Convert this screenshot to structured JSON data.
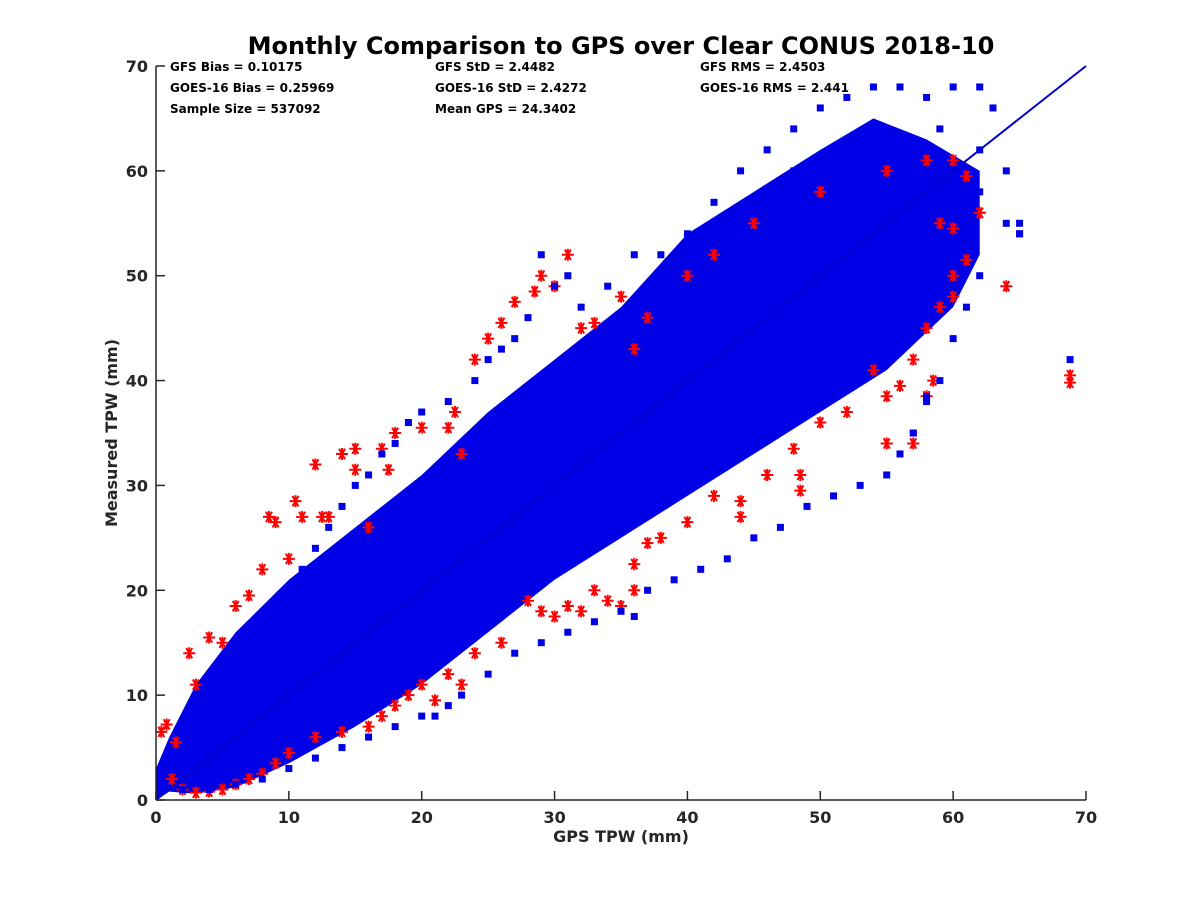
{
  "chart_data": {
    "type": "scatter",
    "title": "Monthly Comparison to GPS over Clear CONUS 2018-10",
    "xlabel": "GPS TPW (mm)",
    "ylabel": "Measured TPW (mm)",
    "xlim": [
      0,
      70
    ],
    "ylim": [
      0,
      70
    ],
    "xticks": [
      0,
      10,
      20,
      30,
      40,
      50,
      60,
      70
    ],
    "yticks": [
      0,
      10,
      20,
      30,
      40,
      50,
      60,
      70
    ],
    "reference_line": {
      "name": "1:1 line",
      "x": [
        0,
        70
      ],
      "y": [
        0,
        70
      ],
      "color": "#0000cc"
    },
    "stats": {
      "gfs_bias": "GFS Bias = 0.10175",
      "goes_bias": "GOES-16 Bias = 0.25969",
      "sample_size": "Sample Size = 537092",
      "gfs_std": "GFS StD = 2.4482",
      "goes_std": "GOES-16 StD = 2.4272",
      "mean_gps": "Mean GPS = 24.3402",
      "gfs_rms": "GFS RMS = 2.4503",
      "goes_rms": "GOES-16 RMS = 2.441"
    },
    "series": [
      {
        "name": "GOES-16",
        "marker": "asterisk",
        "color": "#ff0000",
        "points": [
          [
            0.4,
            6.5
          ],
          [
            0.8,
            7.2
          ],
          [
            1.5,
            5.5
          ],
          [
            2.5,
            14
          ],
          [
            3,
            11
          ],
          [
            4,
            15.5
          ],
          [
            5,
            15
          ],
          [
            6,
            18.5
          ],
          [
            7,
            19.5
          ],
          [
            8,
            22
          ],
          [
            8.5,
            27
          ],
          [
            9,
            26.5
          ],
          [
            10,
            23
          ],
          [
            10.5,
            28.5
          ],
          [
            11,
            27
          ],
          [
            12,
            32
          ],
          [
            12.5,
            27
          ],
          [
            13,
            27
          ],
          [
            14,
            33
          ],
          [
            15,
            33.5
          ],
          [
            15,
            31.5
          ],
          [
            16,
            26
          ],
          [
            17,
            33.5
          ],
          [
            17.5,
            31.5
          ],
          [
            18,
            35
          ],
          [
            20,
            35.5
          ],
          [
            22,
            35.5
          ],
          [
            22.5,
            37
          ],
          [
            23,
            33
          ],
          [
            24,
            42
          ],
          [
            25,
            44
          ],
          [
            26,
            45.5
          ],
          [
            27,
            47.5
          ],
          [
            28.5,
            48.5
          ],
          [
            29,
            50
          ],
          [
            30,
            49
          ],
          [
            31,
            52
          ],
          [
            32,
            45
          ],
          [
            33,
            45.5
          ],
          [
            35,
            48
          ],
          [
            36,
            43
          ],
          [
            37,
            46
          ],
          [
            40,
            50
          ],
          [
            42,
            52
          ],
          [
            45,
            55
          ],
          [
            50,
            58
          ],
          [
            55,
            60
          ],
          [
            58,
            61
          ],
          [
            60,
            61
          ],
          [
            61,
            59.5
          ],
          [
            62,
            56
          ],
          [
            60,
            54.5
          ],
          [
            60,
            48
          ],
          [
            59,
            47
          ],
          [
            58,
            45
          ],
          [
            57,
            42
          ],
          [
            56,
            39.5
          ],
          [
            55,
            38.5
          ],
          [
            54,
            41
          ],
          [
            52,
            37
          ],
          [
            50,
            36
          ],
          [
            48,
            33.5
          ],
          [
            48.5,
            31
          ],
          [
            48.5,
            29.5
          ],
          [
            46,
            31
          ],
          [
            44,
            28.5
          ],
          [
            44,
            27
          ],
          [
            42,
            29
          ],
          [
            40,
            26.5
          ],
          [
            38,
            25
          ],
          [
            37,
            24.5
          ],
          [
            36,
            22.5
          ],
          [
            36,
            20
          ],
          [
            35,
            18.5
          ],
          [
            34,
            19
          ],
          [
            33,
            20
          ],
          [
            32,
            18
          ],
          [
            31,
            18.5
          ],
          [
            30,
            17.5
          ],
          [
            29,
            18
          ],
          [
            28,
            19
          ],
          [
            26,
            15
          ],
          [
            24,
            14
          ],
          [
            23,
            11
          ],
          [
            22,
            12
          ],
          [
            21,
            9.5
          ],
          [
            20,
            11
          ],
          [
            19,
            10
          ],
          [
            18,
            9
          ],
          [
            17,
            8
          ],
          [
            16,
            7
          ],
          [
            14,
            6.5
          ],
          [
            12,
            6
          ],
          [
            10,
            4.5
          ],
          [
            9,
            3.5
          ],
          [
            8,
            2.5
          ],
          [
            7,
            2
          ],
          [
            6,
            1.5
          ],
          [
            5,
            1
          ],
          [
            4,
            0.8
          ],
          [
            3,
            0.7
          ],
          [
            2,
            1
          ],
          [
            1.2,
            2
          ],
          [
            58.5,
            40
          ],
          [
            58,
            38.5
          ],
          [
            55,
            34
          ],
          [
            57,
            34
          ],
          [
            64,
            49
          ],
          [
            62,
            56
          ],
          [
            68.8,
            40.5
          ],
          [
            68.8,
            39.8
          ],
          [
            59,
            55
          ],
          [
            61,
            51.5
          ],
          [
            60,
            50
          ]
        ]
      },
      {
        "name": "GFS",
        "marker": "square",
        "color": "#0000e6",
        "points": [
          [
            1,
            3
          ],
          [
            2,
            5
          ],
          [
            3,
            8
          ],
          [
            4,
            9
          ],
          [
            5,
            12
          ],
          [
            6,
            14
          ],
          [
            7,
            15
          ],
          [
            8,
            17
          ],
          [
            9,
            19
          ],
          [
            10,
            20
          ],
          [
            11,
            22
          ],
          [
            12,
            24
          ],
          [
            13,
            26
          ],
          [
            14,
            28
          ],
          [
            15,
            30
          ],
          [
            16,
            31
          ],
          [
            17,
            33
          ],
          [
            18,
            34
          ],
          [
            19,
            36
          ],
          [
            20,
            37
          ],
          [
            22,
            38
          ],
          [
            24,
            40
          ],
          [
            25,
            42
          ],
          [
            26,
            43
          ],
          [
            27,
            44
          ],
          [
            28,
            46
          ],
          [
            29,
            52
          ],
          [
            30,
            49
          ],
          [
            31,
            50
          ],
          [
            32,
            47
          ],
          [
            34,
            49
          ],
          [
            36,
            52
          ],
          [
            38,
            52
          ],
          [
            40,
            54
          ],
          [
            42,
            57
          ],
          [
            44,
            60
          ],
          [
            46,
            62
          ],
          [
            48,
            64
          ],
          [
            50,
            66
          ],
          [
            52,
            67
          ],
          [
            54,
            68
          ],
          [
            56,
            68
          ],
          [
            58,
            67
          ],
          [
            60,
            68
          ],
          [
            62,
            68
          ],
          [
            63,
            66
          ],
          [
            64,
            60
          ],
          [
            65,
            55
          ],
          [
            65,
            54
          ],
          [
            62,
            50
          ],
          [
            61,
            47
          ],
          [
            60,
            44
          ],
          [
            59,
            40
          ],
          [
            58,
            38
          ],
          [
            57,
            35
          ],
          [
            56,
            33
          ],
          [
            55,
            31
          ],
          [
            53,
            30
          ],
          [
            51,
            29
          ],
          [
            49,
            28
          ],
          [
            47,
            26
          ],
          [
            45,
            25
          ],
          [
            43,
            23
          ],
          [
            41,
            22
          ],
          [
            39,
            21
          ],
          [
            37,
            20
          ],
          [
            35,
            18
          ],
          [
            33,
            17
          ],
          [
            31,
            16
          ],
          [
            29,
            15
          ],
          [
            27,
            14
          ],
          [
            25,
            12
          ],
          [
            23,
            10
          ],
          [
            22,
            9
          ],
          [
            21,
            8
          ],
          [
            20,
            8
          ],
          [
            18,
            7
          ],
          [
            16,
            6
          ],
          [
            14,
            5
          ],
          [
            12,
            4
          ],
          [
            10,
            3
          ],
          [
            8,
            2
          ],
          [
            6,
            1.5
          ],
          [
            4,
            1
          ],
          [
            2,
            1
          ],
          [
            36,
            17.5
          ],
          [
            57,
            35
          ],
          [
            58,
            38.5
          ],
          [
            68.8,
            42
          ],
          [
            64,
            55
          ],
          [
            65,
            54
          ],
          [
            62,
            58
          ],
          [
            60,
            56
          ],
          [
            62,
            62
          ],
          [
            59,
            64
          ],
          [
            52,
            58
          ],
          [
            45,
            50
          ],
          [
            40,
            45
          ],
          [
            35,
            40
          ],
          [
            30,
            35
          ],
          [
            25,
            30
          ],
          [
            20,
            25
          ],
          [
            15,
            20
          ],
          [
            10,
            15
          ],
          [
            5,
            10
          ],
          [
            48,
            60
          ],
          [
            44,
            55
          ],
          [
            42,
            48
          ],
          [
            38,
            44
          ],
          [
            34,
            38
          ],
          [
            32,
            36
          ],
          [
            28,
            32
          ],
          [
            26,
            30
          ],
          [
            24,
            27
          ],
          [
            22,
            25
          ],
          [
            18,
            22
          ],
          [
            16,
            19
          ],
          [
            12,
            14
          ],
          [
            8,
            10
          ],
          [
            6,
            8
          ],
          [
            50,
            52
          ],
          [
            55,
            57
          ],
          [
            58,
            60
          ],
          [
            54,
            52
          ],
          [
            50,
            46
          ],
          [
            46,
            42
          ],
          [
            42,
            40
          ],
          [
            38,
            36
          ],
          [
            34,
            32
          ],
          [
            30,
            28
          ],
          [
            26,
            24
          ],
          [
            22,
            20
          ],
          [
            18,
            16
          ],
          [
            14,
            12
          ],
          [
            10,
            9
          ]
        ]
      }
    ]
  }
}
